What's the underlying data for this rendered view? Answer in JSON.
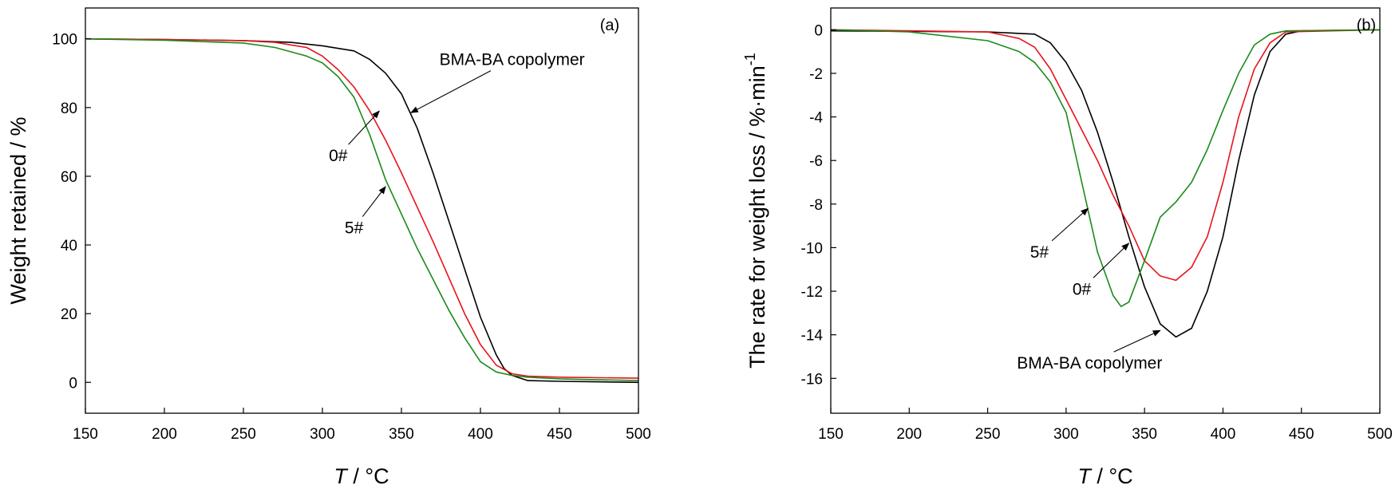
{
  "chart_data": [
    {
      "type": "line",
      "panel": "(a)",
      "xlabel_var": "T",
      "xlabel_unit": " / °C",
      "ylabel": "Weight retained / %",
      "xlim": [
        150,
        500
      ],
      "ylim": [
        -9,
        109
      ],
      "xticks": [
        150,
        200,
        250,
        300,
        350,
        400,
        450,
        500
      ],
      "yticks": [
        0,
        20,
        40,
        60,
        80,
        100
      ],
      "grid": false,
      "series": [
        {
          "key": "bma",
          "color": "#000000",
          "points": [
            [
              150,
              100
            ],
            [
              200,
              99.8
            ],
            [
              250,
              99.5
            ],
            [
              280,
              99
            ],
            [
              300,
              98
            ],
            [
              320,
              96.5
            ],
            [
              330,
              94
            ],
            [
              340,
              90
            ],
            [
              350,
              84
            ],
            [
              360,
              74
            ],
            [
              370,
              61
            ],
            [
              380,
              47
            ],
            [
              390,
              33
            ],
            [
              400,
              19
            ],
            [
              410,
              8
            ],
            [
              415,
              4
            ],
            [
              420,
              2
            ],
            [
              430,
              0.5
            ],
            [
              450,
              0.3
            ],
            [
              500,
              0
            ]
          ]
        },
        {
          "key": "h0",
          "color": "#e8121b",
          "points": [
            [
              150,
              100
            ],
            [
              200,
              99.8
            ],
            [
              250,
              99.5
            ],
            [
              270,
              99
            ],
            [
              290,
              97.5
            ],
            [
              300,
              95
            ],
            [
              310,
              91
            ],
            [
              320,
              86
            ],
            [
              330,
              79
            ],
            [
              340,
              70.5
            ],
            [
              350,
              61
            ],
            [
              360,
              51
            ],
            [
              370,
              41
            ],
            [
              380,
              30.5
            ],
            [
              390,
              20
            ],
            [
              400,
              11
            ],
            [
              410,
              5
            ],
            [
              420,
              2.5
            ],
            [
              430,
              1.8
            ],
            [
              450,
              1.5
            ],
            [
              500,
              1.2
            ]
          ]
        },
        {
          "key": "h5",
          "color": "#1a8a1a",
          "points": [
            [
              150,
              100
            ],
            [
              200,
              99.6
            ],
            [
              250,
              98.8
            ],
            [
              270,
              97.5
            ],
            [
              290,
              95
            ],
            [
              300,
              93
            ],
            [
              310,
              89
            ],
            [
              320,
              83
            ],
            [
              330,
              72
            ],
            [
              340,
              59
            ],
            [
              350,
              49
            ],
            [
              360,
              39
            ],
            [
              370,
              30
            ],
            [
              380,
              21
            ],
            [
              390,
              13
            ],
            [
              400,
              6
            ],
            [
              410,
              3
            ],
            [
              420,
              2
            ],
            [
              430,
              1.5
            ],
            [
              450,
              1
            ],
            [
              500,
              0.5
            ]
          ]
        }
      ],
      "annotations": [
        {
          "text": "BMA-BA copolymer",
          "series": "bma",
          "label_at": [
            420,
            94
          ],
          "arrow_to": [
            356,
            78.5
          ]
        },
        {
          "text": "0#",
          "series": "h0",
          "label_at": [
            310,
            66
          ],
          "arrow_to": [
            336,
            79
          ]
        },
        {
          "text": "5#",
          "series": "h5",
          "label_at": [
            320,
            45
          ],
          "arrow_to": [
            340,
            57
          ]
        }
      ]
    },
    {
      "type": "line",
      "panel": "(b)",
      "xlabel_var": "T",
      "xlabel_unit": " / °C",
      "ylabel_main": "The rate for weight loss / %·min",
      "ylabel_sup": "-1",
      "xlim": [
        150,
        500
      ],
      "ylim": [
        -17.6,
        1
      ],
      "xticks": [
        150,
        200,
        250,
        300,
        350,
        400,
        450,
        500
      ],
      "yticks": [
        0,
        -2,
        -4,
        -6,
        -8,
        -10,
        -12,
        -14,
        -16
      ],
      "grid": false,
      "series": [
        {
          "key": "bma",
          "color": "#000000",
          "points": [
            [
              150,
              -0.05
            ],
            [
              250,
              -0.1
            ],
            [
              280,
              -0.2
            ],
            [
              290,
              -0.6
            ],
            [
              300,
              -1.5
            ],
            [
              310,
              -2.8
            ],
            [
              320,
              -4.7
            ],
            [
              330,
              -7
            ],
            [
              340,
              -9.5
            ],
            [
              350,
              -11.8
            ],
            [
              360,
              -13.5
            ],
            [
              370,
              -14.1
            ],
            [
              380,
              -13.7
            ],
            [
              390,
              -12
            ],
            [
              400,
              -9.5
            ],
            [
              410,
              -6
            ],
            [
              420,
              -3
            ],
            [
              430,
              -1
            ],
            [
              440,
              -0.2
            ],
            [
              450,
              -0.05
            ],
            [
              500,
              0
            ]
          ]
        },
        {
          "key": "h0",
          "color": "#e8121b",
          "points": [
            [
              150,
              0
            ],
            [
              250,
              -0.1
            ],
            [
              270,
              -0.4
            ],
            [
              280,
              -0.8
            ],
            [
              290,
              -1.8
            ],
            [
              300,
              -3.2
            ],
            [
              310,
              -4.6
            ],
            [
              320,
              -6
            ],
            [
              330,
              -7.6
            ],
            [
              340,
              -9
            ],
            [
              350,
              -10.6
            ],
            [
              360,
              -11.3
            ],
            [
              370,
              -11.5
            ],
            [
              380,
              -10.9
            ],
            [
              390,
              -9.5
            ],
            [
              400,
              -7
            ],
            [
              410,
              -4
            ],
            [
              420,
              -1.8
            ],
            [
              430,
              -0.6
            ],
            [
              440,
              -0.1
            ],
            [
              500,
              0
            ]
          ]
        },
        {
          "key": "h5",
          "color": "#1a8a1a",
          "points": [
            [
              150,
              0
            ],
            [
              200,
              -0.1
            ],
            [
              250,
              -0.5
            ],
            [
              270,
              -1
            ],
            [
              280,
              -1.5
            ],
            [
              290,
              -2.4
            ],
            [
              300,
              -3.8
            ],
            [
              310,
              -7
            ],
            [
              320,
              -10.2
            ],
            [
              330,
              -12.2
            ],
            [
              335,
              -12.7
            ],
            [
              340,
              -12.5
            ],
            [
              350,
              -10.6
            ],
            [
              360,
              -8.6
            ],
            [
              370,
              -7.9
            ],
            [
              380,
              -7
            ],
            [
              390,
              -5.5
            ],
            [
              400,
              -3.7
            ],
            [
              410,
              -2
            ],
            [
              420,
              -0.7
            ],
            [
              430,
              -0.2
            ],
            [
              440,
              -0.05
            ],
            [
              500,
              0
            ]
          ]
        }
      ],
      "annotations": [
        {
          "text": "5#",
          "series": "h5",
          "label_at": [
            283,
            -10.2
          ],
          "arrow_to": [
            314,
            -8.2
          ]
        },
        {
          "text": "0#",
          "series": "h0",
          "label_at": [
            310,
            -11.9
          ],
          "arrow_to": [
            340,
            -9.8
          ]
        },
        {
          "text": "BMA-BA copolymer",
          "series": "bma",
          "label_at": [
            315,
            -15.3
          ],
          "arrow_to": [
            360,
            -13.8
          ]
        }
      ]
    }
  ]
}
